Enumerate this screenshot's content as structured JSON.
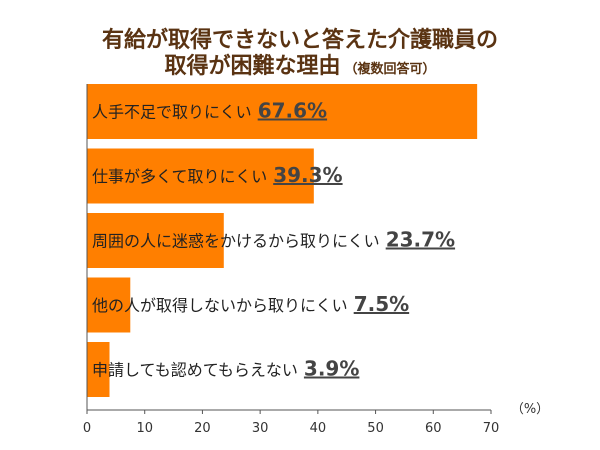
{
  "chart_data": {
    "type": "bar",
    "orientation": "horizontal",
    "title": "有給が取得できないと答えた介護職員の",
    "title_line2": "取得が困難な理由",
    "title_note": "（複数回答可）",
    "categories": [
      "人手不足で取りにくい",
      "仕事が多くて取りにくい",
      "周囲の人に迷惑をかけるから取りにくい",
      "他の人が取得しないから取りにくい",
      "申請しても認めてもらえない"
    ],
    "values": [
      67.6,
      39.3,
      23.7,
      7.5,
      3.9
    ],
    "value_labels": [
      "67.6%",
      "39.3%",
      "23.7%",
      "7.5%",
      "3.9%"
    ],
    "xlim": [
      0,
      70
    ],
    "xticks": [
      "0",
      "10",
      "20",
      "30",
      "40",
      "50",
      "60",
      "70"
    ],
    "xunit": "（%）",
    "grid": false,
    "bar_color": "#ff7f00",
    "title_color": "#5a3312",
    "label_color": "#222222",
    "value_color": "#444444"
  }
}
